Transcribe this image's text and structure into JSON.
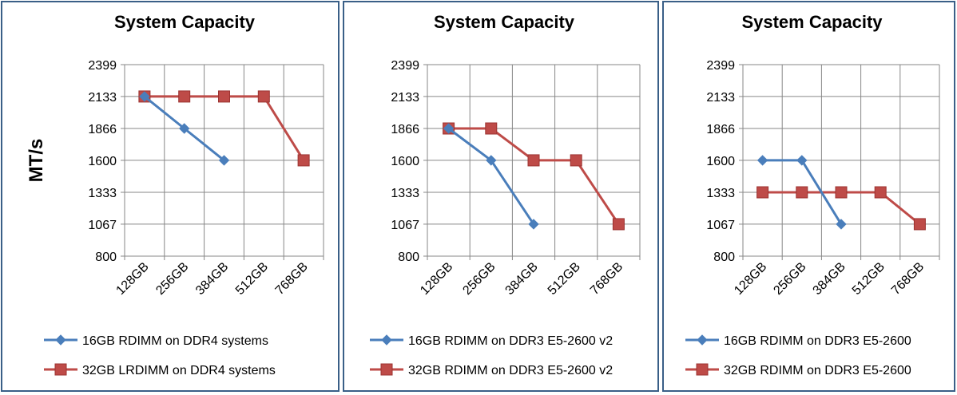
{
  "chart_data": [
    {
      "type": "line",
      "title": "System Capacity",
      "ylabel": "MT/s",
      "xlabel": "",
      "categories": [
        "128GB",
        "256GB",
        "384GB",
        "512GB",
        "768GB"
      ],
      "yticks": [
        "2399",
        "2133",
        "1866",
        "1600",
        "1333",
        "1067",
        "800"
      ],
      "ylim": [
        800,
        2399
      ],
      "series": [
        {
          "name": "16GB RDIMM on DDR4 systems",
          "values": [
            2133,
            1866,
            1600,
            null,
            null
          ],
          "color": "#4a7ebb",
          "marker": "diamond"
        },
        {
          "name": "32GB LRDIMM on DDR4 systems",
          "values": [
            2133,
            2133,
            2133,
            2133,
            1600
          ],
          "color": "#be4b48",
          "marker": "square"
        }
      ],
      "legend": "bottom"
    },
    {
      "type": "line",
      "title": "System Capacity",
      "ylabel": "",
      "xlabel": "",
      "categories": [
        "128GB",
        "256GB",
        "384GB",
        "512GB",
        "768GB"
      ],
      "yticks": [
        "2399",
        "2133",
        "1866",
        "1600",
        "1333",
        "1067",
        "800"
      ],
      "ylim": [
        800,
        2399
      ],
      "series": [
        {
          "name": "16GB RDIMM on DDR3 E5-2600 v2",
          "values": [
            1866,
            1600,
            1067,
            null,
            null
          ],
          "color": "#4a7ebb",
          "marker": "diamond"
        },
        {
          "name": "32GB RDIMM on DDR3 E5-2600 v2",
          "values": [
            1866,
            1866,
            1600,
            1600,
            1067
          ],
          "color": "#be4b48",
          "marker": "square"
        }
      ],
      "legend": "bottom"
    },
    {
      "type": "line",
      "title": "System Capacity",
      "ylabel": "",
      "xlabel": "",
      "categories": [
        "128GB",
        "256GB",
        "384GB",
        "512GB",
        "768GB"
      ],
      "yticks": [
        "2399",
        "2133",
        "1866",
        "1600",
        "1333",
        "1067",
        "800"
      ],
      "ylim": [
        800,
        2399
      ],
      "series": [
        {
          "name": "16GB RDIMM on DDR3 E5-2600",
          "values": [
            1600,
            1600,
            1067,
            null,
            null
          ],
          "color": "#4a7ebb",
          "marker": "diamond"
        },
        {
          "name": "32GB RDIMM on DDR3 E5-2600",
          "values": [
            1333,
            1333,
            1333,
            1333,
            1067
          ],
          "color": "#be4b48",
          "marker": "square"
        }
      ],
      "legend": "bottom"
    }
  ]
}
